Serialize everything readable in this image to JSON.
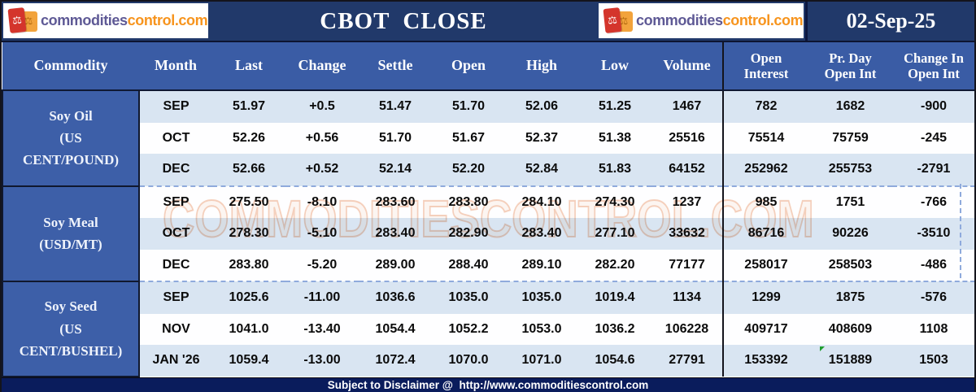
{
  "banner": {
    "logo": {
      "icon": "scales-icon",
      "text_main": "commodities",
      "text_suffix": "control.com"
    },
    "title": "CBOT  CLOSE",
    "date": "02-Sep-25"
  },
  "watermark": "COMMODITIESCONTROL.COM",
  "table": {
    "headers": [
      "Commodity",
      "Month",
      "Last",
      "Change",
      "Settle",
      "Open",
      "High",
      "Low",
      "Volume",
      "Open\nInterest",
      "Pr. Day\nOpen Int",
      "Change In\nOpen Int"
    ],
    "groups": [
      {
        "commodity": "Soy Oil\n(US\nCENT/POUND)",
        "rows": [
          [
            "SEP",
            "51.97",
            "+0.5",
            "51.47",
            "51.70",
            "52.06",
            "51.25",
            "1467",
            "782",
            "1682",
            "-900"
          ],
          [
            "OCT",
            "52.26",
            "+0.56",
            "51.70",
            "51.67",
            "52.37",
            "51.38",
            "25516",
            "75514",
            "75759",
            "-245"
          ],
          [
            "DEC",
            "52.66",
            "+0.52",
            "52.14",
            "52.20",
            "52.84",
            "51.83",
            "64152",
            "252962",
            "255753",
            "-2791"
          ]
        ]
      },
      {
        "commodity": "Soy Meal\n(USD/MT)",
        "rows": [
          [
            "SEP",
            "275.50",
            "-8.10",
            "283.60",
            "283.80",
            "284.10",
            "274.30",
            "1237",
            "985",
            "1751",
            "-766"
          ],
          [
            "OCT",
            "278.30",
            "-5.10",
            "283.40",
            "282.90",
            "283.40",
            "277.10",
            "33632",
            "86716",
            "90226",
            "-3510"
          ],
          [
            "DEC",
            "283.80",
            "-5.20",
            "289.00",
            "288.40",
            "289.10",
            "282.20",
            "77177",
            "258017",
            "258503",
            "-486"
          ]
        ]
      },
      {
        "commodity": "Soy Seed\n(US\nCENT/BUSHEL)",
        "rows": [
          [
            "SEP",
            "1025.6",
            "-11.00",
            "1036.6",
            "1035.0",
            "1035.0",
            "1019.4",
            "1134",
            "1299",
            "1875",
            "-576"
          ],
          [
            "NOV",
            "1041.0",
            "-13.40",
            "1054.4",
            "1052.2",
            "1053.0",
            "1036.2",
            "106228",
            "409717",
            "408609",
            "1108"
          ],
          [
            "JAN '26",
            "1059.4",
            "-13.00",
            "1072.4",
            "1070.0",
            "1071.0",
            "1054.6",
            "27791",
            "153392",
            "151889",
            "1503"
          ]
        ]
      }
    ]
  },
  "footer": {
    "text": "Subject to Disclaimer @  http://www.commoditiescontrol.com"
  },
  "colors": {
    "banner_navy": "#21396A",
    "footer_navy": "#0A1C5C",
    "header_blue": "#3A5CA5",
    "commodity_blue": "#3D5FA8",
    "stripe_light_blue": "#D9E5F2",
    "dashed_separator": "#8FAADC",
    "red_bar": "#C00000",
    "logo_purple": "#5E5995",
    "logo_orange": "#F7941D",
    "watermark_orange": "#E9966A"
  }
}
